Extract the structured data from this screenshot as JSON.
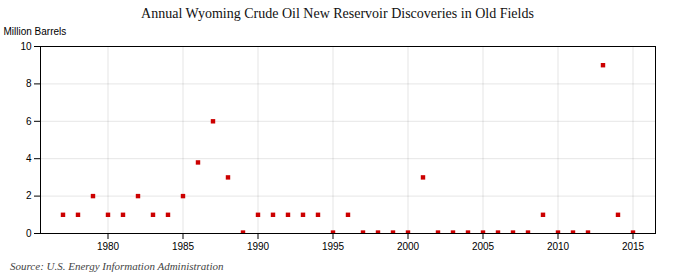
{
  "chart_data": {
    "type": "scatter",
    "title": "Annual Wyoming Crude Oil New Reservoir Discoveries in Old Fields",
    "ylabel": "Million Barrels",
    "source": "Source: U.S. Energy Information Administration",
    "color": "#cc0000",
    "marker": "square",
    "x": [
      1977,
      1978,
      1979,
      1980,
      1981,
      1982,
      1983,
      1984,
      1985,
      1986,
      1987,
      1988,
      1989,
      1990,
      1991,
      1992,
      1993,
      1994,
      1995,
      1996,
      1997,
      1998,
      1999,
      2000,
      2001,
      2002,
      2003,
      2004,
      2005,
      2006,
      2007,
      2008,
      2009,
      2010,
      2011,
      2012,
      2013,
      2014,
      2015
    ],
    "values": [
      1.0,
      1.0,
      2.0,
      1.0,
      1.0,
      2.0,
      1.0,
      1.0,
      2.0,
      3.8,
      6.0,
      3.0,
      0.05,
      1.0,
      1.0,
      1.0,
      1.0,
      1.0,
      0.05,
      1.0,
      0.05,
      0.05,
      0.05,
      0.05,
      3.0,
      0.05,
      0.05,
      0.05,
      0.05,
      0.05,
      0.05,
      0.05,
      1.0,
      0.05,
      0.05,
      0.05,
      9.0,
      1.0,
      0.05
    ],
    "xlim": [
      1975.5,
      2016.5
    ],
    "ylim": [
      0,
      10
    ],
    "xticks": [
      1980,
      1985,
      1990,
      1995,
      2000,
      2005,
      2010,
      2015
    ],
    "yticks": [
      0,
      2,
      4,
      6,
      8,
      10
    ],
    "grid": true
  }
}
